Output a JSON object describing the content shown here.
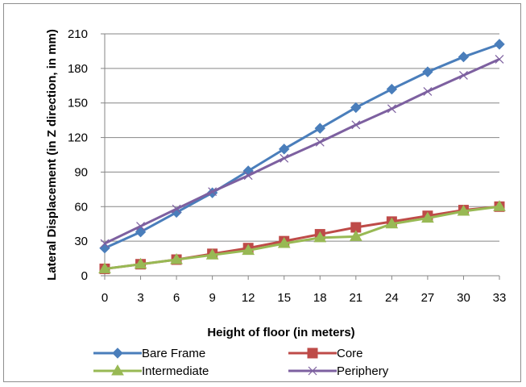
{
  "chart_data": {
    "type": "line",
    "xlabel": "Height of floor (in meters)",
    "ylabel": "Lateral Displacement (in Z direction, in mm)",
    "x": [
      0,
      3,
      6,
      9,
      12,
      15,
      18,
      21,
      24,
      27,
      30,
      33
    ],
    "ylim": [
      0,
      210
    ],
    "yticks": [
      0,
      30,
      60,
      90,
      120,
      150,
      180,
      210
    ],
    "grid": "horizontal",
    "legend_position": "bottom",
    "series": [
      {
        "name": "Bare Frame",
        "color": "#4a7ebb",
        "marker": "diamond",
        "values": [
          24,
          38,
          55,
          72,
          91,
          110,
          128,
          146,
          162,
          177,
          190,
          201
        ]
      },
      {
        "name": "Core",
        "color": "#be4b48",
        "marker": "square",
        "values": [
          6,
          10,
          14,
          19,
          24,
          30,
          36,
          42,
          47,
          52,
          57,
          60
        ]
      },
      {
        "name": "Intermediate",
        "color": "#98b954",
        "marker": "triangle",
        "values": [
          6,
          10,
          14,
          18,
          22,
          28,
          33,
          34,
          45,
          50,
          56,
          60
        ]
      },
      {
        "name": "Periphery",
        "color": "#7d60a0",
        "marker": "x",
        "values": [
          28,
          43,
          58,
          73,
          87,
          102,
          116,
          131,
          145,
          160,
          174,
          188
        ]
      }
    ]
  }
}
